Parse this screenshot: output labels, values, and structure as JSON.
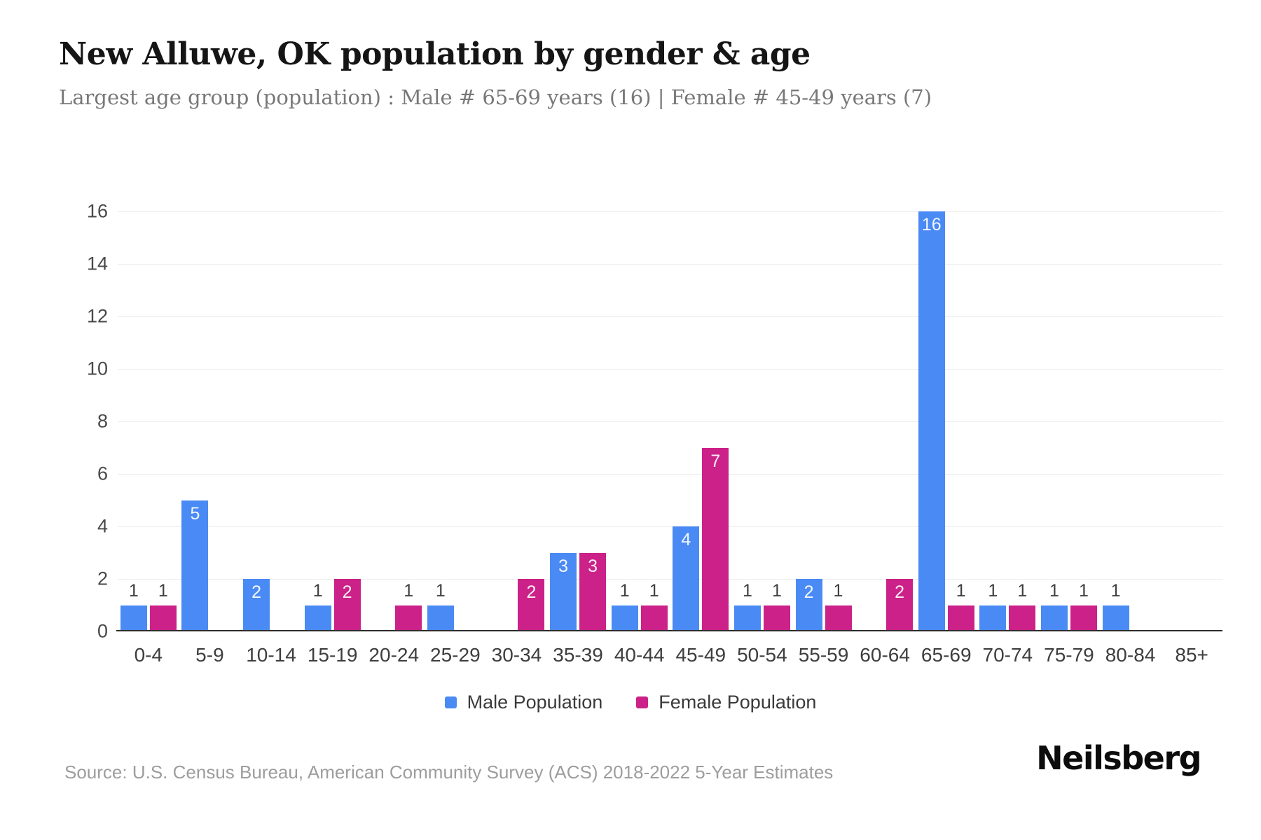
{
  "chart_data": {
    "type": "bar",
    "title": "New Alluwe, OK population by gender & age",
    "subtitle": "Largest age group (population) : Male # 65-69 years (16) | Female # 45-49 years (7)",
    "categories": [
      "0-4",
      "5-9",
      "10-14",
      "15-19",
      "20-24",
      "25-29",
      "30-34",
      "35-39",
      "40-44",
      "45-49",
      "50-54",
      "55-59",
      "60-64",
      "65-69",
      "70-74",
      "75-79",
      "80-84",
      "85+"
    ],
    "series": [
      {
        "name": "Male Population",
        "color": "#4a8af4",
        "values": [
          1,
          5,
          2,
          1,
          0,
          1,
          0,
          3,
          1,
          4,
          1,
          2,
          0,
          16,
          1,
          1,
          1,
          0
        ]
      },
      {
        "name": "Female Population",
        "color": "#cb2188",
        "values": [
          1,
          0,
          0,
          2,
          1,
          0,
          2,
          3,
          1,
          7,
          1,
          1,
          2,
          1,
          1,
          1,
          0,
          0
        ]
      }
    ],
    "xlabel": "",
    "ylabel": "",
    "ylim": [
      0,
      16
    ],
    "ytick_step": 2,
    "grid": true,
    "legend_position": "bottom",
    "value_labels": true
  },
  "footer": {
    "source": "Source: U.S. Census Bureau, American Community Survey (ACS) 2018-2022 5-Year Estimates",
    "brand": "Neilsberg"
  }
}
